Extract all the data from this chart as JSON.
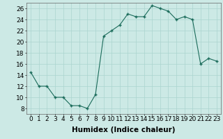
{
  "x": [
    0,
    1,
    2,
    3,
    4,
    5,
    6,
    7,
    8,
    9,
    10,
    11,
    12,
    13,
    14,
    15,
    16,
    17,
    18,
    19,
    20,
    21,
    22,
    23
  ],
  "y": [
    14.5,
    12,
    12,
    10,
    10,
    8.5,
    8.5,
    8,
    10.5,
    21,
    22,
    23,
    25,
    24.5,
    24.5,
    26.5,
    26,
    25.5,
    24,
    24.5,
    24,
    16,
    17,
    16.5
  ],
  "line_color": "#1a6b5a",
  "marker_color": "#1a6b5a",
  "bg_color": "#cce9e5",
  "grid_color": "#aad4cf",
  "xlabel": "Humidex (Indice chaleur)",
  "xlim": [
    -0.5,
    23.5
  ],
  "ylim": [
    7,
    27
  ],
  "yticks": [
    8,
    10,
    12,
    14,
    16,
    18,
    20,
    22,
    24,
    26
  ],
  "xticks": [
    0,
    1,
    2,
    3,
    4,
    5,
    6,
    7,
    8,
    9,
    10,
    11,
    12,
    13,
    14,
    15,
    16,
    17,
    18,
    19,
    20,
    21,
    22,
    23
  ],
  "xlabel_fontsize": 7.5,
  "tick_fontsize": 6.5
}
